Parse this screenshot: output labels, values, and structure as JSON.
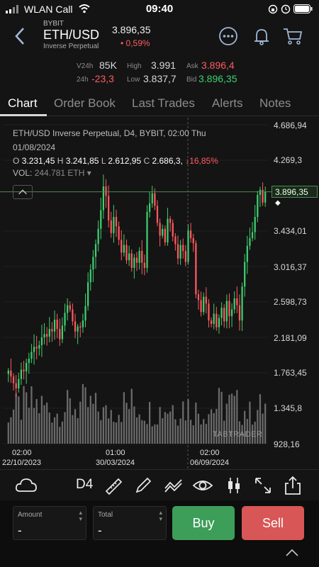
{
  "status_bar": {
    "carrier": "WLAN Call",
    "time": "09:40"
  },
  "header": {
    "exchange": "BYBIT",
    "pair": "ETH/USD",
    "type": "Inverse Perpetual",
    "price": "3.896,35",
    "change": "• 0,59%"
  },
  "stats": {
    "v24h_label": "V24h",
    "v24h": "85K",
    "change24h_label": "24h",
    "change24h": "-23,3",
    "high_label": "High",
    "high": "3.991",
    "low_label": "Low",
    "low": "3.837,7",
    "ask_label": "Ask",
    "ask": "3.896,4",
    "bid_label": "Bid",
    "bid": "3.896,35"
  },
  "tabs": [
    "Chart",
    "Order Book",
    "Last Trades",
    "Alerts",
    "Notes"
  ],
  "chart_info": {
    "line1": "ETH/USD Inverse Perpetual, D4, BYBIT, 02:00 Thu",
    "line2": "01/08/2024",
    "o_label": "O",
    "o": "3.231,45",
    "h_label": "H",
    "h": "3.241,85",
    "l_label": "L",
    "l": "2.612,95",
    "c_label": "C",
    "c": "2.686,3,",
    "chg": "↓16,85%",
    "vol_label": "VOL:",
    "vol": "244.781 ETH"
  },
  "chart_data": {
    "type": "candlestick",
    "y_ticks": [
      "4.686,94",
      "4.269,3",
      "3.434,01",
      "3.016,37",
      "2.598,73",
      "2.181,09",
      "1.763,45",
      "1.345,8",
      "928,16"
    ],
    "y_tick_values": [
      4686.94,
      4269.3,
      3434.01,
      3016.37,
      2598.73,
      2181.09,
      1763.45,
      1345.8,
      928.16
    ],
    "ylim": [
      928.16,
      4686.94
    ],
    "x_ticks": [
      {
        "time": "02:00",
        "date": "22/10/2023"
      },
      {
        "time": "01:00",
        "date": "30/03/2024"
      },
      {
        "time": "02:00",
        "date": "06/09/2024"
      }
    ],
    "last_price": "3.896,35",
    "last_price_value": 3896.35,
    "watermark": "TABTRADER",
    "colors": {
      "up": "#3ecf6f",
      "down": "#ff5a5f",
      "volume": "#7a7a7a",
      "last_line": "#4d8a4d"
    },
    "closes": [
      1790,
      1720,
      1640,
      1580,
      1690,
      1800,
      1780,
      1880,
      1930,
      2010,
      2070,
      2050,
      2090,
      2180,
      2220,
      2190,
      2280,
      2250,
      2390,
      2280,
      2160,
      2320,
      2470,
      2560,
      2510,
      2370,
      2250,
      2310,
      2300,
      2380,
      2550,
      2830,
      2980,
      3130,
      3280,
      3460,
      3680,
      3960,
      3850,
      3560,
      3410,
      3600,
      3490,
      3330,
      3180,
      3270,
      3090,
      3170,
      3000,
      3120,
      3060,
      3200,
      3060,
      3000,
      3660,
      3760,
      3880,
      3730,
      3530,
      3380,
      3460,
      3300,
      3580,
      3530,
      3370,
      3280,
      3110,
      3270,
      3200,
      3070,
      3440,
      3350,
      3290,
      2690,
      2620,
      2480,
      2660,
      2580,
      2380,
      2340,
      2460,
      2300,
      2410,
      2530,
      2370,
      2610,
      2430,
      2510,
      2640,
      2560,
      2380,
      2780,
      3070,
      3260,
      3350,
      3420,
      3600,
      3860,
      3920,
      3770,
      3896
    ]
  },
  "toolbar": {
    "timeframe": "D4"
  },
  "order": {
    "amount_label": "Amount",
    "amount_value": "-",
    "total_label": "Total",
    "total_value": "-",
    "buy_label": "Buy",
    "sell_label": "Sell"
  }
}
